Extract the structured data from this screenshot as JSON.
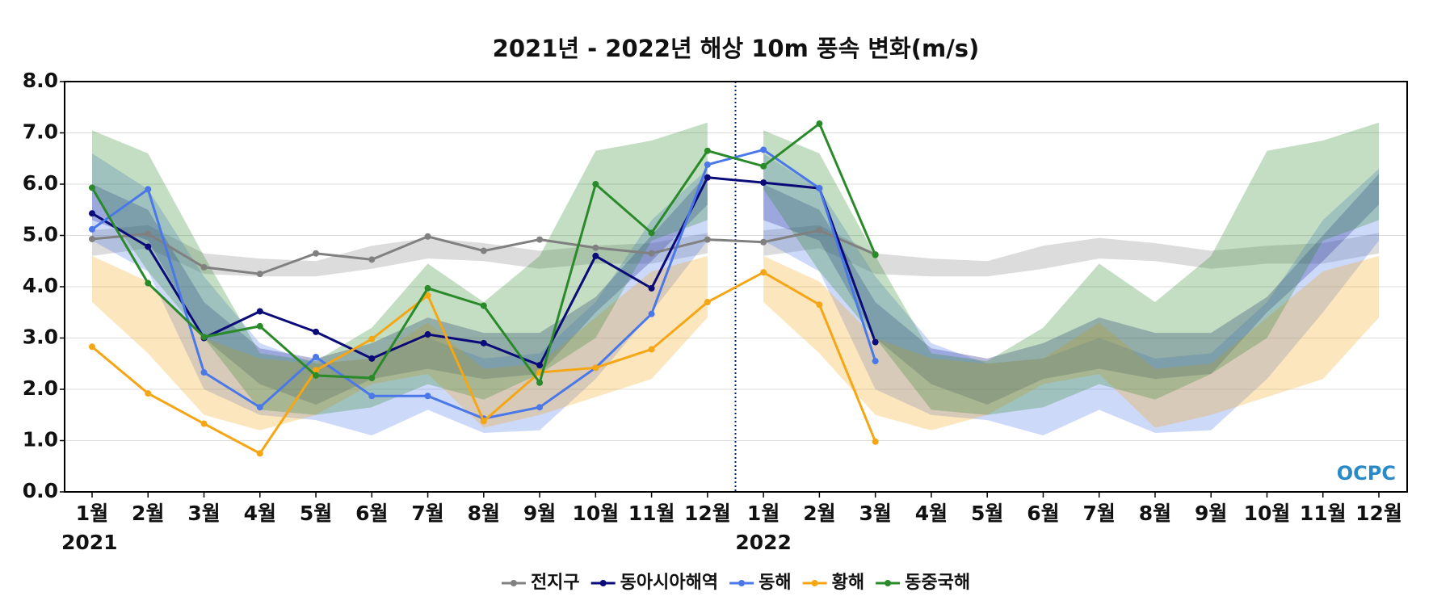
{
  "chart_data": {
    "type": "line",
    "title": "2021년 - 2022년 해상 10m 풍속 변화(m/s)",
    "categories": [
      "1월",
      "2월",
      "3월",
      "4월",
      "5월",
      "6월",
      "7월",
      "8월",
      "9월",
      "10월",
      "11월",
      "12월",
      "1월",
      "2월",
      "3월",
      "4월",
      "5월",
      "6월",
      "7월",
      "8월",
      "9월",
      "10월",
      "11월",
      "12월"
    ],
    "years": [
      "2021",
      "2022"
    ],
    "watermark": "OCPC",
    "ylim": [
      0,
      8
    ],
    "yticks": [
      {
        "value": 0,
        "label": "0.0"
      },
      {
        "value": 1,
        "label": "1.0"
      },
      {
        "value": 2,
        "label": "2.0"
      },
      {
        "value": 3,
        "label": "3.0"
      },
      {
        "value": 4,
        "label": "4.0"
      },
      {
        "value": 5,
        "label": "5.0"
      },
      {
        "value": 6,
        "label": "6.0"
      },
      {
        "value": 7,
        "label": "7.0"
      },
      {
        "value": 8,
        "label": "8.0"
      }
    ],
    "grid": true,
    "legend": "bottom",
    "series": [
      {
        "name": "전지구",
        "color": "#808080",
        "values": [
          4.93,
          5.03,
          4.38,
          4.25,
          4.65,
          4.53,
          4.98,
          4.7,
          4.92,
          4.76,
          4.65,
          4.92,
          4.87,
          5.1,
          4.63,
          null,
          null,
          null,
          null,
          null,
          null,
          null,
          null,
          null
        ],
        "band_high": [
          5.1,
          5.2,
          4.65,
          4.55,
          4.5,
          4.8,
          4.95,
          4.85,
          4.7,
          4.8,
          4.85,
          5.05
        ],
        "band_low": [
          4.6,
          4.75,
          4.25,
          4.2,
          4.2,
          4.35,
          4.55,
          4.5,
          4.35,
          4.45,
          4.45,
          4.65
        ]
      },
      {
        "name": "동아시아해역",
        "color": "#0a0a78",
        "values": [
          5.43,
          4.78,
          3.0,
          3.52,
          3.12,
          2.6,
          3.07,
          2.9,
          2.47,
          4.6,
          3.97,
          6.13,
          6.03,
          5.92,
          2.92,
          null,
          null,
          null,
          null,
          null,
          null,
          null,
          null,
          null
        ],
        "band_high": [
          6.0,
          5.5,
          3.7,
          2.8,
          2.6,
          2.9,
          3.4,
          3.1,
          3.1,
          3.8,
          5.0,
          6.2
        ],
        "band_low": [
          5.3,
          4.9,
          3.0,
          2.1,
          1.7,
          2.2,
          2.4,
          2.2,
          2.3,
          3.5,
          4.5,
          5.6
        ]
      },
      {
        "name": "동해",
        "color": "#4a78e8",
        "values": [
          5.12,
          5.9,
          2.33,
          1.65,
          2.63,
          1.87,
          1.87,
          1.43,
          1.65,
          2.42,
          3.47,
          6.38,
          6.67,
          5.92,
          2.55,
          null,
          null,
          null,
          null,
          null,
          null,
          null,
          null,
          null
        ],
        "band_high": [
          6.6,
          5.9,
          4.2,
          2.9,
          2.5,
          2.6,
          3.0,
          2.6,
          2.7,
          3.7,
          5.3,
          6.3
        ],
        "band_low": [
          4.9,
          4.3,
          2.0,
          1.5,
          1.4,
          1.1,
          1.6,
          1.15,
          1.2,
          2.2,
          3.5,
          4.9
        ]
      },
      {
        "name": "황해",
        "color": "#f5a614",
        "values": [
          2.83,
          1.92,
          1.33,
          0.75,
          2.37,
          2.98,
          3.83,
          1.38,
          2.33,
          2.42,
          2.78,
          3.7,
          4.28,
          3.65,
          0.98,
          null,
          null,
          null,
          null,
          null,
          null,
          null,
          null,
          null
        ],
        "band_high": [
          4.6,
          4.1,
          3.0,
          2.6,
          2.5,
          2.6,
          3.3,
          2.4,
          2.5,
          3.4,
          4.3,
          4.6
        ],
        "band_low": [
          3.7,
          2.7,
          1.5,
          1.2,
          1.5,
          2.1,
          2.3,
          1.25,
          1.5,
          1.85,
          2.2,
          3.4
        ]
      },
      {
        "name": "동중국해",
        "color": "#2a8a2a",
        "values": [
          5.93,
          4.07,
          3.02,
          3.23,
          2.27,
          2.22,
          3.97,
          3.63,
          2.13,
          6.0,
          5.05,
          6.65,
          6.35,
          7.18,
          4.62,
          null,
          null,
          null,
          null,
          null,
          null,
          null,
          null,
          null
        ],
        "band_high": [
          7.05,
          6.6,
          4.6,
          2.7,
          2.55,
          3.2,
          4.45,
          3.7,
          4.6,
          6.65,
          6.85,
          7.2
        ],
        "band_low": [
          5.9,
          4.3,
          3.0,
          1.6,
          1.5,
          1.65,
          2.1,
          1.8,
          2.3,
          3.0,
          4.9,
          5.3
        ]
      }
    ]
  }
}
